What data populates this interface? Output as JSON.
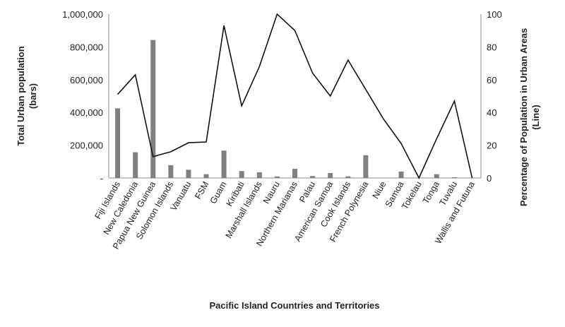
{
  "chart_data": {
    "type": "bar",
    "title": "",
    "xlabel": "Pacific Island Countries and Territories",
    "ylabel": "Total Urban population\n(bars)",
    "y2label": "Percentage of Population in Urban Areas\n(Line)",
    "ylim": [
      0,
      1000000
    ],
    "y2lim": [
      0,
      100
    ],
    "yticks": [
      "-",
      "200,000",
      "400,000",
      "600,000",
      "800,000",
      "1,000,000"
    ],
    "y2ticks": [
      "0",
      "20",
      "40",
      "60",
      "80",
      "100"
    ],
    "grid": false,
    "categories": [
      "Fiji Islands",
      "New Caledonia",
      "Papua New Guinea",
      "Solomon Islands",
      "Vanuatu",
      "FSM",
      "Guam",
      "Kiribati",
      "Marshall Islands",
      "Nauru",
      "Northern Marianas",
      "Palau",
      "American Samoa",
      "Cook Islands",
      "French Polynesia",
      "Niue",
      "Samoa",
      "Tokelau",
      "Tonga",
      "Tuvalu",
      "Wallis and Futuna"
    ],
    "series": [
      {
        "name": "Total Urban population",
        "type": "bar",
        "axis": "left",
        "color": "#808080",
        "values": [
          425000,
          157000,
          842000,
          78000,
          50000,
          23000,
          167000,
          42000,
          35000,
          9500,
          56000,
          12000,
          30000,
          10000,
          139000,
          700,
          39000,
          0,
          23000,
          4500,
          0
        ]
      },
      {
        "name": "Percentage of Population in Urban Areas",
        "type": "line",
        "axis": "right",
        "color": "#111111",
        "values": [
          51,
          63,
          13,
          16,
          21.5,
          22,
          93,
          44,
          68,
          100,
          90,
          64,
          50,
          72,
          54,
          36,
          21,
          0,
          24,
          47,
          0
        ]
      }
    ]
  }
}
